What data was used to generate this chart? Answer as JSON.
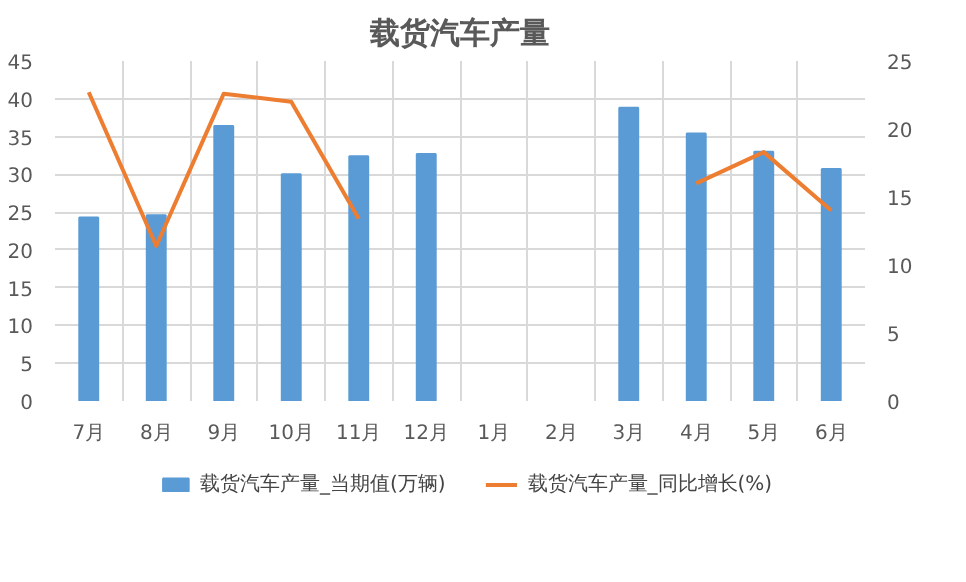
{
  "chart_data": {
    "type": "bar",
    "title": "载货汽车产量",
    "categories": [
      "7月",
      "8月",
      "9月",
      "10月",
      "11月",
      "12月",
      "1月",
      "2月",
      "3月",
      "4月",
      "5月",
      "6月"
    ],
    "series": [
      {
        "name": "载货汽车产量_当期值(万辆)",
        "color": "#5b9bd5",
        "values": [
          24.3,
          24.6,
          36.4,
          30.0,
          32.4,
          32.7,
          null,
          null,
          38.8,
          35.4,
          33.0,
          30.7
        ]
      },
      {
        "name": "载货汽车产量_同比增长(%)",
        "color": "#ed7d31",
        "type": "line",
        "axis": "y2",
        "values": [
          22.7,
          11.4,
          22.6,
          22.0,
          13.4,
          null,
          null,
          null,
          null,
          16.0,
          18.3,
          14.0
        ]
      }
    ],
    "ylim": [
      0,
      45
    ],
    "yticks": [
      0,
      5,
      10,
      15,
      20,
      25,
      30,
      35,
      40,
      45
    ],
    "y2lim": [
      0,
      25
    ],
    "y2ticks": [
      0,
      5,
      10,
      15,
      20,
      25
    ],
    "grid": true,
    "legend": "bottom"
  }
}
